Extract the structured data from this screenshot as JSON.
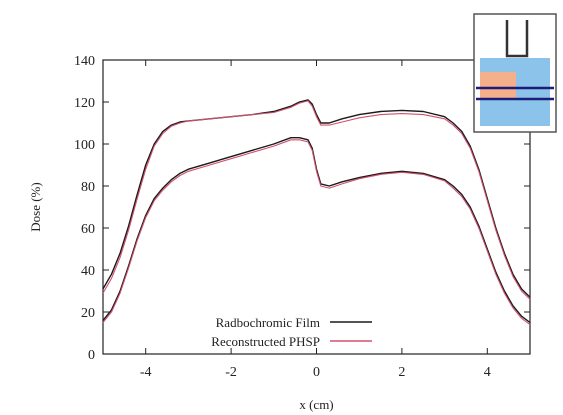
{
  "chart_data": {
    "type": "line",
    "xlabel": "x (cm)",
    "ylabel": "Dose (%)",
    "xlim": [
      -5,
      5
    ],
    "ylim": [
      0,
      140
    ],
    "xticks": [
      -4,
      -2,
      0,
      2,
      4
    ],
    "yticks": [
      0,
      20,
      40,
      60,
      80,
      100,
      120,
      140
    ],
    "grid": false,
    "legend_position": "bottom-center",
    "series": [
      {
        "name": "Radbochromic Film",
        "color": "#1a1a1a",
        "profiles": [
          {
            "x": [
              -5.0,
              -4.8,
              -4.6,
              -4.4,
              -4.2,
              -4.0,
              -3.8,
              -3.6,
              -3.4,
              -3.2,
              -3.0,
              -2.5,
              -2.0,
              -1.5,
              -1.0,
              -0.6,
              -0.4,
              -0.2,
              -0.1,
              0.0,
              0.1,
              0.3,
              0.6,
              1.0,
              1.5,
              2.0,
              2.5,
              3.0,
              3.2,
              3.4,
              3.6,
              3.8,
              4.0,
              4.2,
              4.4,
              4.6,
              4.8,
              5.0
            ],
            "y": [
              31,
              38,
              48,
              61,
              76,
              90,
              100,
              106,
              109,
              110.5,
              111,
              112,
              113,
              114,
              115.5,
              118,
              120,
              121,
              119,
              114,
              110,
              110,
              112,
              114,
              115.5,
              116,
              115.5,
              113,
              110,
              106,
              99,
              88,
              74,
              60,
              48,
              38,
              31,
              27
            ]
          },
          {
            "x": [
              -5.0,
              -4.8,
              -4.6,
              -4.4,
              -4.2,
              -4.0,
              -3.8,
              -3.6,
              -3.4,
              -3.2,
              -3.0,
              -2.5,
              -2.0,
              -1.5,
              -1.0,
              -0.6,
              -0.4,
              -0.2,
              -0.1,
              0.0,
              0.1,
              0.3,
              0.6,
              1.0,
              1.5,
              2.0,
              2.5,
              3.0,
              3.2,
              3.4,
              3.6,
              3.8,
              4.0,
              4.2,
              4.4,
              4.6,
              4.8,
              5.0
            ],
            "y": [
              16,
              21,
              30,
              42,
              55,
              66,
              74,
              79,
              83,
              86,
              88,
              91,
              94,
              97,
              100,
              103,
              103,
              102,
              98,
              88,
              81,
              80,
              82,
              84,
              86,
              87,
              86,
              83,
              80,
              76,
              70,
              61,
              50,
              39,
              30,
              23,
              18,
              15
            ]
          }
        ]
      },
      {
        "name": "Reconstructed PHSP",
        "color": "#d2506e",
        "profiles": [
          {
            "x": [
              -5.0,
              -4.8,
              -4.6,
              -4.4,
              -4.2,
              -4.0,
              -3.8,
              -3.6,
              -3.4,
              -3.2,
              -3.0,
              -2.5,
              -2.0,
              -1.5,
              -1.0,
              -0.6,
              -0.4,
              -0.2,
              -0.1,
              0.0,
              0.1,
              0.3,
              0.6,
              1.0,
              1.5,
              2.0,
              2.5,
              3.0,
              3.2,
              3.4,
              3.6,
              3.8,
              4.0,
              4.2,
              4.4,
              4.6,
              4.8,
              5.0
            ],
            "y": [
              29,
              36,
              46,
              59,
              74,
              88,
              99,
              105,
              108.5,
              110,
              111,
              112,
              113,
              114,
              115,
              117.5,
              119.5,
              120.5,
              118,
              113,
              109,
              109,
              110.5,
              112.5,
              114,
              114.5,
              114,
              112,
              109,
              105,
              98,
              87,
              73,
              59,
              47,
              37,
              30,
              26
            ]
          },
          {
            "x": [
              -5.0,
              -4.8,
              -4.6,
              -4.4,
              -4.2,
              -4.0,
              -3.8,
              -3.6,
              -3.4,
              -3.2,
              -3.0,
              -2.5,
              -2.0,
              -1.5,
              -1.0,
              -0.6,
              -0.4,
              -0.2,
              -0.1,
              0.0,
              0.1,
              0.3,
              0.6,
              1.0,
              1.5,
              2.0,
              2.5,
              3.0,
              3.2,
              3.4,
              3.6,
              3.8,
              4.0,
              4.2,
              4.4,
              4.6,
              4.8,
              5.0
            ],
            "y": [
              15,
              20,
              29,
              41,
              54,
              65,
              73,
              78,
              82,
              85,
              87,
              90,
              93,
              96,
              99,
              102,
              102,
              101,
              97,
              87,
              80,
              79,
              81,
              83.5,
              85.5,
              86.5,
              85.5,
              82.5,
              79,
              75,
              69,
              60,
              49,
              38,
              29,
              22,
              17,
              14
            ]
          }
        ]
      }
    ]
  },
  "inset": {
    "background": "#8cc3ea",
    "insert_color": "#f3b08a",
    "line_color": "#1c1c7a",
    "frame_color": "#555555",
    "applicator_color": "#333333"
  }
}
